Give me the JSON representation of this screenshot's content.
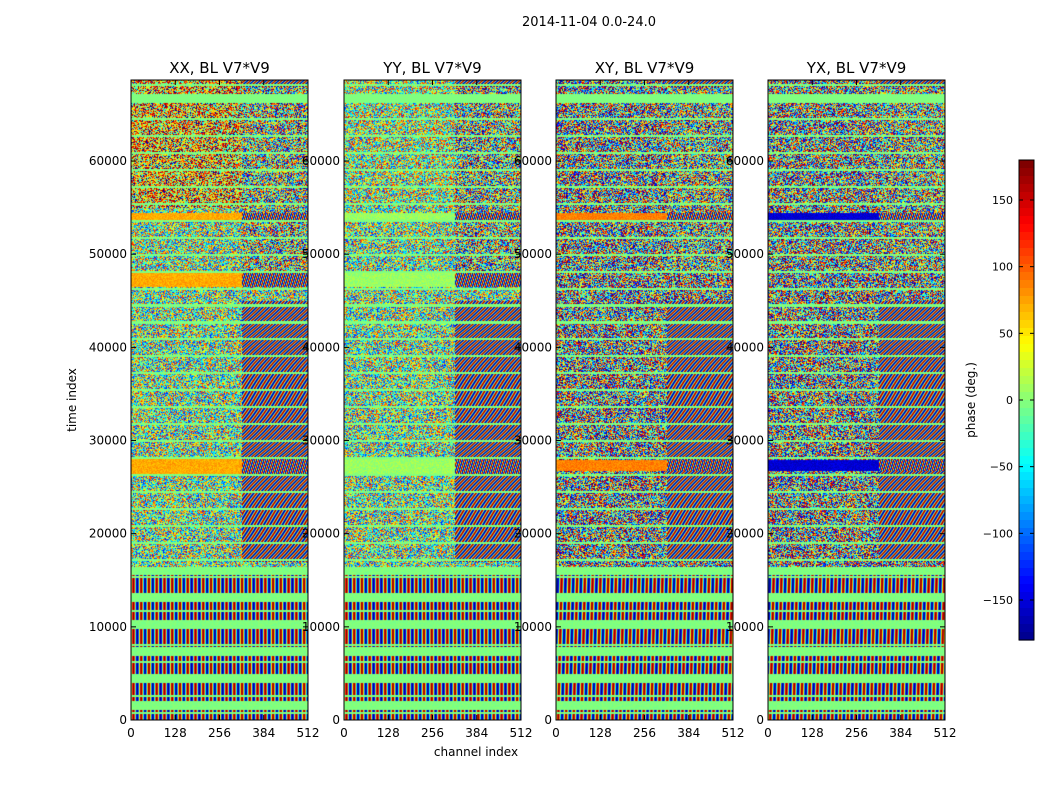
{
  "chart_data": {
    "type": "heatmap",
    "suptitle": "2014-11-04 0.0-24.0",
    "xlabel": "channel index",
    "ylabel": "time index",
    "xlim": [
      0,
      512
    ],
    "ylim": [
      0,
      68700
    ],
    "xticks": [
      "0",
      "128",
      "256",
      "384",
      "512"
    ],
    "yticks": [
      "0",
      "10000",
      "20000",
      "30000",
      "40000",
      "50000",
      "60000"
    ],
    "panels": [
      {
        "title": "XX, BL V7*V9",
        "coherent_phase": 75,
        "mode": "xx"
      },
      {
        "title": "YY, BL V7*V9",
        "coherent_phase": 10,
        "mode": "yy"
      },
      {
        "title": "XY, BL V7*V9",
        "coherent_phase": 90,
        "mode": "xy"
      },
      {
        "title": "YX, BL V7*V9",
        "coherent_phase": -150,
        "mode": "yx"
      }
    ],
    "colorbar": {
      "label": "phase (deg.)",
      "range": [
        -180,
        180
      ],
      "ticks": [
        "150",
        "100",
        "50",
        "0",
        "−50",
        "−100",
        "−150"
      ],
      "tick_values": [
        150,
        100,
        50,
        0,
        -50,
        -100,
        -150
      ],
      "colormap": "jet"
    }
  }
}
